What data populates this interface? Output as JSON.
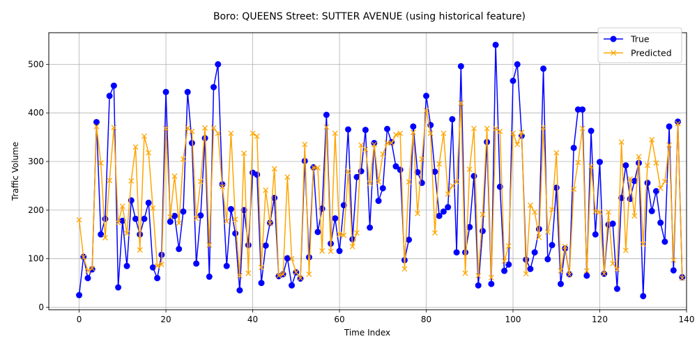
{
  "chart_data": {
    "type": "line",
    "title": "Boro: QUEENS Street: SUTTER AVENUE (using historical feature)",
    "xlabel": "Time Index",
    "ylabel": "Traffic Volume",
    "xlim": [
      -7,
      140
    ],
    "ylim": [
      -5,
      565
    ],
    "xticks": [
      0,
      20,
      40,
      60,
      80,
      100,
      120,
      140
    ],
    "yticks": [
      0,
      100,
      200,
      300,
      400,
      500
    ],
    "grid": true,
    "legend_position": "top-right",
    "series": [
      {
        "name": "True",
        "color": "#0000ff",
        "marker": "circle",
        "values": [
          25,
          104,
          60,
          78,
          381,
          150,
          182,
          435,
          456,
          41,
          178,
          85,
          220,
          182,
          150,
          182,
          215,
          82,
          60,
          108,
          443,
          176,
          188,
          120,
          197,
          443,
          338,
          90,
          189,
          348,
          63,
          453,
          500,
          253,
          85,
          202,
          152,
          35,
          200,
          128,
          277,
          273,
          50,
          127,
          174,
          225,
          64,
          68,
          101,
          45,
          72,
          59,
          301,
          103,
          288,
          155,
          203,
          396,
          131,
          183,
          116,
          210,
          366,
          140,
          268,
          280,
          365,
          164,
          338,
          219,
          245,
          367,
          340,
          290,
          283,
          97,
          139,
          372,
          278,
          256,
          435,
          375,
          279,
          188,
          197,
          206,
          387,
          113,
          496,
          113,
          165,
          270,
          45,
          157,
          340,
          48,
          540,
          248,
          75,
          88,
          466,
          500,
          353,
          98,
          79,
          113,
          161,
          491,
          99,
          128,
          246,
          48,
          121,
          68,
          328,
          407,
          407,
          65,
          363,
          150,
          299,
          69,
          170,
          172,
          38,
          225,
          292,
          223,
          260,
          297,
          23,
          256,
          198,
          239,
          174,
          135,
          372,
          76,
          382,
          62
        ]
      },
      {
        "name": "Predicted",
        "color": "#ffa500",
        "marker": "x",
        "values": [
          180,
          103,
          75,
          80,
          372,
          297,
          143,
          261,
          370,
          174,
          208,
          152,
          260,
          330,
          118,
          352,
          318,
          204,
          85,
          88,
          368,
          186,
          270,
          173,
          305,
          369,
          362,
          183,
          259,
          369,
          128,
          369,
          358,
          248,
          177,
          358,
          181,
          65,
          317,
          70,
          358,
          352,
          82,
          241,
          172,
          285,
          65,
          68,
          268,
          100,
          72,
          60,
          335,
          68,
          288,
          287,
          116,
          371,
          115,
          358,
          150,
          148,
          280,
          125,
          153,
          334,
          325,
          255,
          335,
          258,
          315,
          338,
          338,
          355,
          358,
          79,
          258,
          360,
          193,
          305,
          405,
          358,
          153,
          295,
          358,
          233,
          250,
          258,
          420,
          70,
          284,
          368,
          65,
          191,
          368,
          61,
          368,
          362,
          95,
          126,
          358,
          335,
          360,
          69,
          210,
          196,
          144,
          370,
          155,
          201,
          318,
          75,
          125,
          67,
          243,
          298,
          368,
          75,
          290,
          197,
          196,
          69,
          196,
          90,
          78,
          340,
          117,
          264,
          188,
          310,
          130,
          292,
          345,
          297,
          245,
          259,
          334,
          97,
          378,
          60
        ]
      }
    ]
  }
}
